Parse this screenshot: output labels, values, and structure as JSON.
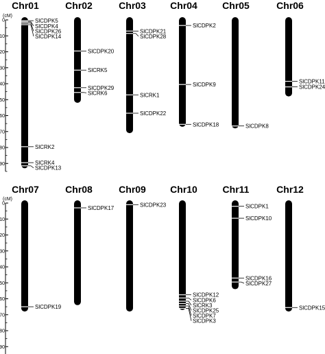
{
  "figure": {
    "unit": "(cM)"
  },
  "chart_data": {
    "type": "chromosome_map",
    "scale": {
      "min": 0,
      "max": 90,
      "step": 10
    },
    "panels": [
      {
        "chromosomes": [
          {
            "name": "Chr01",
            "length": 93,
            "genes": [
              {
                "name": "SlCDPK5",
                "pos": 0.5
              },
              {
                "name": "SlCDPK4",
                "pos": 1.2
              },
              {
                "name": "SlCDPK26",
                "pos": 2.0
              },
              {
                "name": "SlCDPK14",
                "pos": 3.0
              },
              {
                "name": "SlCRK2",
                "pos": 79.5
              },
              {
                "name": "SlCRK4",
                "pos": 89.5
              },
              {
                "name": "SlCDPK13",
                "pos": 91.5
              }
            ]
          },
          {
            "name": "Chr02",
            "length": 52,
            "genes": [
              {
                "name": "SlCDPK20",
                "pos": 19.5
              },
              {
                "name": "SlCRK5",
                "pos": 31.5
              },
              {
                "name": "SlCDPK29",
                "pos": 42.5
              },
              {
                "name": "SlCRK6",
                "pos": 45.5
              }
            ]
          },
          {
            "name": "Chr03",
            "length": 71,
            "genes": [
              {
                "name": "SlCDPK21",
                "pos": 7.0
              },
              {
                "name": "SlCDPK28",
                "pos": 8.5
              },
              {
                "name": "SlCRK1",
                "pos": 47.0
              },
              {
                "name": "SlCDPK22",
                "pos": 58.5
              }
            ]
          },
          {
            "name": "Chr04",
            "length": 67,
            "genes": [
              {
                "name": "SlCDPK2",
                "pos": 3.5
              },
              {
                "name": "SlCDPK9",
                "pos": 40.5
              },
              {
                "name": "SlCDPK18",
                "pos": 65.5
              }
            ]
          },
          {
            "name": "Chr05",
            "length": 68,
            "genes": [
              {
                "name": "SlCDPK8",
                "pos": 66.5
              }
            ]
          },
          {
            "name": "Chr06",
            "length": 48,
            "genes": [
              {
                "name": "SlCDPK11",
                "pos": 38.5
              },
              {
                "name": "SlCDPK24",
                "pos": 42.0
              }
            ]
          }
        ]
      },
      {
        "chromosomes": [
          {
            "name": "Chr07",
            "length": 68,
            "genes": [
              {
                "name": "SlCDPK19",
                "pos": 65.0
              }
            ]
          },
          {
            "name": "Chr08",
            "length": 64,
            "genes": [
              {
                "name": "SlCDPK17",
                "pos": 3.0
              }
            ]
          },
          {
            "name": "Chr09",
            "length": 68,
            "genes": [
              {
                "name": "SlCDPK23",
                "pos": 1.0
              }
            ]
          },
          {
            "name": "Chr10",
            "length": 67,
            "genes": [
              {
                "name": "SlCDPK12",
                "pos": 57.5
              },
              {
                "name": "SlCDPK6",
                "pos": 59.5
              },
              {
                "name": "SlCRK3",
                "pos": 61.5
              },
              {
                "name": "SlCDPK25",
                "pos": 63.0
              },
              {
                "name": "SlCDPK7",
                "pos": 64.5
              },
              {
                "name": "SlCDPK3",
                "pos": 66.0
              }
            ]
          },
          {
            "name": "Chr11",
            "length": 54,
            "genes": [
              {
                "name": "SlCDPK1",
                "pos": 2.0
              },
              {
                "name": "SlCDPK10",
                "pos": 9.5
              },
              {
                "name": "SlCDPK16",
                "pos": 47.0
              },
              {
                "name": "SlCDPK27",
                "pos": 49.5
              }
            ]
          },
          {
            "name": "Chr12",
            "length": 68,
            "genes": [
              {
                "name": "SlCDPK15",
                "pos": 65.5
              }
            ]
          }
        ]
      }
    ]
  }
}
